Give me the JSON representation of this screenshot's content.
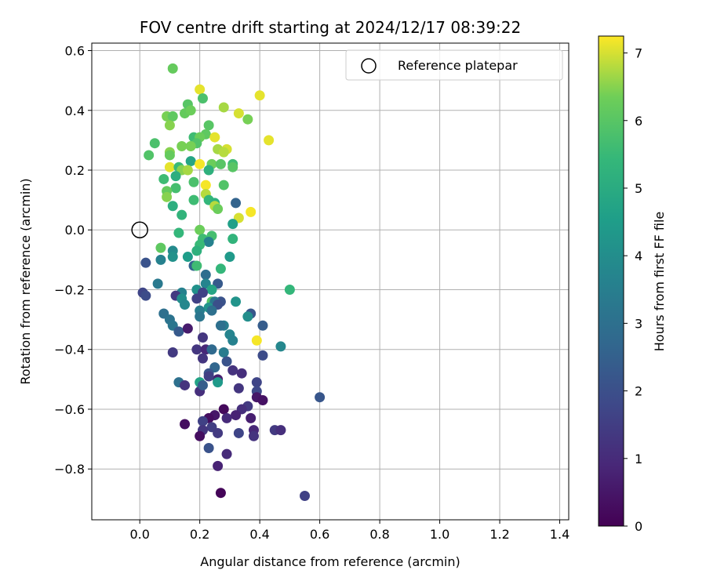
{
  "chart_data": {
    "type": "scatter",
    "title": "FOV centre drift starting at 2024/12/17 08:39:22",
    "xlabel": "Angular distance from reference (arcmin)",
    "ylabel": "Rotation from reference (arcmin)",
    "xlim": [
      -0.16,
      1.43
    ],
    "ylim": [
      -0.97,
      0.625
    ],
    "xticks": [
      "0.0",
      "0.2",
      "0.4",
      "0.6",
      "0.8",
      "1.0",
      "1.2",
      "1.4"
    ],
    "yticks": [
      "−0.8",
      "−0.6",
      "−0.4",
      "−0.2",
      "0.0",
      "0.2",
      "0.4",
      "0.6"
    ],
    "grid": true,
    "legend": {
      "position": "top-right",
      "entries": [
        "Reference platepar"
      ]
    },
    "reference_point": {
      "x": 0.0,
      "y": 0.0
    },
    "colorbar": {
      "label": "Hours from first FF file",
      "min": 0,
      "max": 7.25,
      "ticks": [
        "0",
        "1",
        "2",
        "3",
        "4",
        "5",
        "6",
        "7"
      ],
      "colormap": "viridis"
    },
    "points": [
      {
        "x": 0.11,
        "y": 0.54,
        "c": 6.2
      },
      {
        "x": 0.2,
        "y": 0.47,
        "c": 7.1
      },
      {
        "x": 0.21,
        "y": 0.44,
        "c": 5.8
      },
      {
        "x": 0.16,
        "y": 0.42,
        "c": 6.0
      },
      {
        "x": 0.15,
        "y": 0.39,
        "c": 6.2
      },
      {
        "x": 0.17,
        "y": 0.4,
        "c": 6.3
      },
      {
        "x": 0.09,
        "y": 0.38,
        "c": 6.4
      },
      {
        "x": 0.11,
        "y": 0.38,
        "c": 6.1
      },
      {
        "x": 0.28,
        "y": 0.41,
        "c": 6.7
      },
      {
        "x": 0.33,
        "y": 0.39,
        "c": 7.0
      },
      {
        "x": 0.36,
        "y": 0.37,
        "c": 6.4
      },
      {
        "x": 0.4,
        "y": 0.45,
        "c": 7.1
      },
      {
        "x": 0.1,
        "y": 0.35,
        "c": 6.5
      },
      {
        "x": 0.23,
        "y": 0.35,
        "c": 6.0
      },
      {
        "x": 0.22,
        "y": 0.32,
        "c": 6.1
      },
      {
        "x": 0.18,
        "y": 0.31,
        "c": 5.6
      },
      {
        "x": 0.2,
        "y": 0.31,
        "c": 6.3
      },
      {
        "x": 0.25,
        "y": 0.31,
        "c": 7.1
      },
      {
        "x": 0.43,
        "y": 0.3,
        "c": 7.1
      },
      {
        "x": 0.05,
        "y": 0.29,
        "c": 5.8
      },
      {
        "x": 0.19,
        "y": 0.29,
        "c": 5.9
      },
      {
        "x": 0.14,
        "y": 0.28,
        "c": 6.4
      },
      {
        "x": 0.17,
        "y": 0.28,
        "c": 6.4
      },
      {
        "x": 0.26,
        "y": 0.27,
        "c": 6.7
      },
      {
        "x": 0.29,
        "y": 0.27,
        "c": 7.0
      },
      {
        "x": 0.1,
        "y": 0.26,
        "c": 6.5
      },
      {
        "x": 0.28,
        "y": 0.26,
        "c": 6.8
      },
      {
        "x": 0.03,
        "y": 0.25,
        "c": 5.9
      },
      {
        "x": 0.1,
        "y": 0.25,
        "c": 6.2
      },
      {
        "x": 0.17,
        "y": 0.23,
        "c": 4.8
      },
      {
        "x": 0.24,
        "y": 0.22,
        "c": 6.3
      },
      {
        "x": 0.27,
        "y": 0.22,
        "c": 6.0
      },
      {
        "x": 0.31,
        "y": 0.22,
        "c": 5.6
      },
      {
        "x": 0.2,
        "y": 0.22,
        "c": 7.2
      },
      {
        "x": 0.1,
        "y": 0.21,
        "c": 7.1
      },
      {
        "x": 0.13,
        "y": 0.21,
        "c": 5.5
      },
      {
        "x": 0.14,
        "y": 0.2,
        "c": 6.5
      },
      {
        "x": 0.16,
        "y": 0.2,
        "c": 6.7
      },
      {
        "x": 0.23,
        "y": 0.2,
        "c": 5.2
      },
      {
        "x": 0.31,
        "y": 0.21,
        "c": 6.0
      },
      {
        "x": 0.12,
        "y": 0.18,
        "c": 5.1
      },
      {
        "x": 0.08,
        "y": 0.17,
        "c": 5.6
      },
      {
        "x": 0.18,
        "y": 0.16,
        "c": 5.8
      },
      {
        "x": 0.22,
        "y": 0.15,
        "c": 7.2
      },
      {
        "x": 0.28,
        "y": 0.15,
        "c": 5.9
      },
      {
        "x": 0.12,
        "y": 0.14,
        "c": 5.7
      },
      {
        "x": 0.09,
        "y": 0.13,
        "c": 6.2
      },
      {
        "x": 0.22,
        "y": 0.12,
        "c": 6.8
      },
      {
        "x": 0.09,
        "y": 0.11,
        "c": 6.5
      },
      {
        "x": 0.23,
        "y": 0.1,
        "c": 5.4
      },
      {
        "x": 0.18,
        "y": 0.1,
        "c": 5.6
      },
      {
        "x": 0.25,
        "y": 0.09,
        "c": 5.2
      },
      {
        "x": 0.25,
        "y": 0.08,
        "c": 6.8
      },
      {
        "x": 0.32,
        "y": 0.09,
        "c": 2.6
      },
      {
        "x": 0.26,
        "y": 0.07,
        "c": 6.3
      },
      {
        "x": 0.11,
        "y": 0.08,
        "c": 5.1
      },
      {
        "x": 0.37,
        "y": 0.06,
        "c": 7.2
      },
      {
        "x": 0.14,
        "y": 0.05,
        "c": 5.3
      },
      {
        "x": 0.33,
        "y": 0.04,
        "c": 7.0
      },
      {
        "x": 0.31,
        "y": 0.02,
        "c": 4.6
      },
      {
        "x": 0.13,
        "y": -0.01,
        "c": 5.4
      },
      {
        "x": 0.2,
        "y": 0.0,
        "c": 6.3
      },
      {
        "x": 0.24,
        "y": -0.02,
        "c": 5.7
      },
      {
        "x": 0.21,
        "y": -0.03,
        "c": 5.6
      },
      {
        "x": 0.31,
        "y": -0.03,
        "c": 5.3
      },
      {
        "x": 0.23,
        "y": -0.04,
        "c": 3.6
      },
      {
        "x": 0.2,
        "y": -0.05,
        "c": 5.5
      },
      {
        "x": 0.19,
        "y": -0.07,
        "c": 5.2
      },
      {
        "x": 0.07,
        "y": -0.06,
        "c": 6.1
      },
      {
        "x": 0.11,
        "y": -0.07,
        "c": 3.9
      },
      {
        "x": 0.11,
        "y": -0.09,
        "c": 4.1
      },
      {
        "x": 0.16,
        "y": -0.09,
        "c": 4.5
      },
      {
        "x": 0.3,
        "y": -0.09,
        "c": 4.4
      },
      {
        "x": 0.07,
        "y": -0.1,
        "c": 3.6
      },
      {
        "x": 0.02,
        "y": -0.11,
        "c": 2.1
      },
      {
        "x": 0.18,
        "y": -0.12,
        "c": 2.6
      },
      {
        "x": 0.19,
        "y": -0.12,
        "c": 5.6
      },
      {
        "x": 0.27,
        "y": -0.13,
        "c": 5.4
      },
      {
        "x": 0.22,
        "y": -0.15,
        "c": 2.9
      },
      {
        "x": 0.06,
        "y": -0.18,
        "c": 3.3
      },
      {
        "x": 0.22,
        "y": -0.18,
        "c": 3.7
      },
      {
        "x": 0.26,
        "y": -0.18,
        "c": 2.3
      },
      {
        "x": 0.19,
        "y": -0.2,
        "c": 4.1
      },
      {
        "x": 0.24,
        "y": -0.2,
        "c": 4.8
      },
      {
        "x": 0.01,
        "y": -0.21,
        "c": 1.7
      },
      {
        "x": 0.02,
        "y": -0.22,
        "c": 1.9
      },
      {
        "x": 0.14,
        "y": -0.21,
        "c": 3.6
      },
      {
        "x": 0.12,
        "y": -0.22,
        "c": 1.4
      },
      {
        "x": 0.14,
        "y": -0.23,
        "c": 4.0
      },
      {
        "x": 0.21,
        "y": -0.21,
        "c": 1.6
      },
      {
        "x": 0.5,
        "y": -0.2,
        "c": 5.4
      },
      {
        "x": 0.15,
        "y": -0.25,
        "c": 3.8
      },
      {
        "x": 0.19,
        "y": -0.23,
        "c": 1.6
      },
      {
        "x": 0.24,
        "y": -0.24,
        "c": 5.9
      },
      {
        "x": 0.27,
        "y": -0.24,
        "c": 2.1
      },
      {
        "x": 0.25,
        "y": -0.24,
        "c": 3.2
      },
      {
        "x": 0.32,
        "y": -0.24,
        "c": 4.2
      },
      {
        "x": 0.23,
        "y": -0.26,
        "c": 4.2
      },
      {
        "x": 0.26,
        "y": -0.25,
        "c": 2.0
      },
      {
        "x": 0.2,
        "y": -0.27,
        "c": 3.5
      },
      {
        "x": 0.24,
        "y": -0.27,
        "c": 3.0
      },
      {
        "x": 0.37,
        "y": -0.28,
        "c": 2.2
      },
      {
        "x": 0.36,
        "y": -0.29,
        "c": 4.0
      },
      {
        "x": 0.08,
        "y": -0.28,
        "c": 3.0
      },
      {
        "x": 0.1,
        "y": -0.3,
        "c": 3.1
      },
      {
        "x": 0.2,
        "y": -0.29,
        "c": 3.2
      },
      {
        "x": 0.28,
        "y": -0.32,
        "c": 3.5
      },
      {
        "x": 0.27,
        "y": -0.32,
        "c": 3.0
      },
      {
        "x": 0.11,
        "y": -0.32,
        "c": 3.2
      },
      {
        "x": 0.13,
        "y": -0.34,
        "c": 2.3
      },
      {
        "x": 0.16,
        "y": -0.33,
        "c": 0.6
      },
      {
        "x": 0.41,
        "y": -0.32,
        "c": 2.4
      },
      {
        "x": 0.3,
        "y": -0.35,
        "c": 3.7
      },
      {
        "x": 0.31,
        "y": -0.37,
        "c": 3.6
      },
      {
        "x": 0.21,
        "y": -0.36,
        "c": 1.3
      },
      {
        "x": 0.39,
        "y": -0.37,
        "c": 7.2
      },
      {
        "x": 0.19,
        "y": -0.4,
        "c": 1.3
      },
      {
        "x": 0.22,
        "y": -0.4,
        "c": 0.9
      },
      {
        "x": 0.24,
        "y": -0.4,
        "c": 2.8
      },
      {
        "x": 0.28,
        "y": -0.41,
        "c": 3.4
      },
      {
        "x": 0.47,
        "y": -0.39,
        "c": 3.8
      },
      {
        "x": 0.11,
        "y": -0.41,
        "c": 1.4
      },
      {
        "x": 0.41,
        "y": -0.42,
        "c": 1.9
      },
      {
        "x": 0.21,
        "y": -0.43,
        "c": 1.3
      },
      {
        "x": 0.29,
        "y": -0.44,
        "c": 2.1
      },
      {
        "x": 0.25,
        "y": -0.46,
        "c": 2.7
      },
      {
        "x": 0.31,
        "y": -0.47,
        "c": 1.2
      },
      {
        "x": 0.34,
        "y": -0.48,
        "c": 1.1
      },
      {
        "x": 0.23,
        "y": -0.48,
        "c": 2.1
      },
      {
        "x": 0.26,
        "y": -0.5,
        "c": 0.7
      },
      {
        "x": 0.23,
        "y": -0.49,
        "c": 1.5
      },
      {
        "x": 0.26,
        "y": -0.51,
        "c": 4.4
      },
      {
        "x": 0.13,
        "y": -0.51,
        "c": 3.0
      },
      {
        "x": 0.15,
        "y": -0.52,
        "c": 1.2
      },
      {
        "x": 0.2,
        "y": -0.51,
        "c": 4.7
      },
      {
        "x": 0.2,
        "y": -0.54,
        "c": 1.1
      },
      {
        "x": 0.21,
        "y": -0.52,
        "c": 2.4
      },
      {
        "x": 0.33,
        "y": -0.53,
        "c": 1.3
      },
      {
        "x": 0.39,
        "y": -0.51,
        "c": 1.7
      },
      {
        "x": 0.39,
        "y": -0.54,
        "c": 1.8
      },
      {
        "x": 0.39,
        "y": -0.56,
        "c": 0.5
      },
      {
        "x": 0.41,
        "y": -0.57,
        "c": 0.4
      },
      {
        "x": 0.6,
        "y": -0.56,
        "c": 2.2
      },
      {
        "x": 0.28,
        "y": -0.6,
        "c": 0.2
      },
      {
        "x": 0.36,
        "y": -0.59,
        "c": 1.4
      },
      {
        "x": 0.34,
        "y": -0.6,
        "c": 1.1
      },
      {
        "x": 0.32,
        "y": -0.62,
        "c": 0.8
      },
      {
        "x": 0.25,
        "y": -0.62,
        "c": 0.5
      },
      {
        "x": 0.29,
        "y": -0.63,
        "c": 1.0
      },
      {
        "x": 0.37,
        "y": -0.63,
        "c": 0.7
      },
      {
        "x": 0.23,
        "y": -0.63,
        "c": 0.3
      },
      {
        "x": 0.15,
        "y": -0.65,
        "c": 0.3
      },
      {
        "x": 0.24,
        "y": -0.66,
        "c": 1.5
      },
      {
        "x": 0.21,
        "y": -0.64,
        "c": 1.6
      },
      {
        "x": 0.21,
        "y": -0.67,
        "c": 1.3
      },
      {
        "x": 0.45,
        "y": -0.67,
        "c": 1.4
      },
      {
        "x": 0.47,
        "y": -0.67,
        "c": 1.1
      },
      {
        "x": 0.38,
        "y": -0.67,
        "c": 0.9
      },
      {
        "x": 0.33,
        "y": -0.68,
        "c": 1.7
      },
      {
        "x": 0.2,
        "y": -0.69,
        "c": 0.3
      },
      {
        "x": 0.26,
        "y": -0.68,
        "c": 1.4
      },
      {
        "x": 0.38,
        "y": -0.69,
        "c": 1.2
      },
      {
        "x": 0.23,
        "y": -0.73,
        "c": 2.1
      },
      {
        "x": 0.29,
        "y": -0.75,
        "c": 1.0
      },
      {
        "x": 0.26,
        "y": -0.79,
        "c": 0.8
      },
      {
        "x": 0.27,
        "y": -0.88,
        "c": 0.1
      },
      {
        "x": 0.55,
        "y": -0.89,
        "c": 1.6
      }
    ]
  }
}
